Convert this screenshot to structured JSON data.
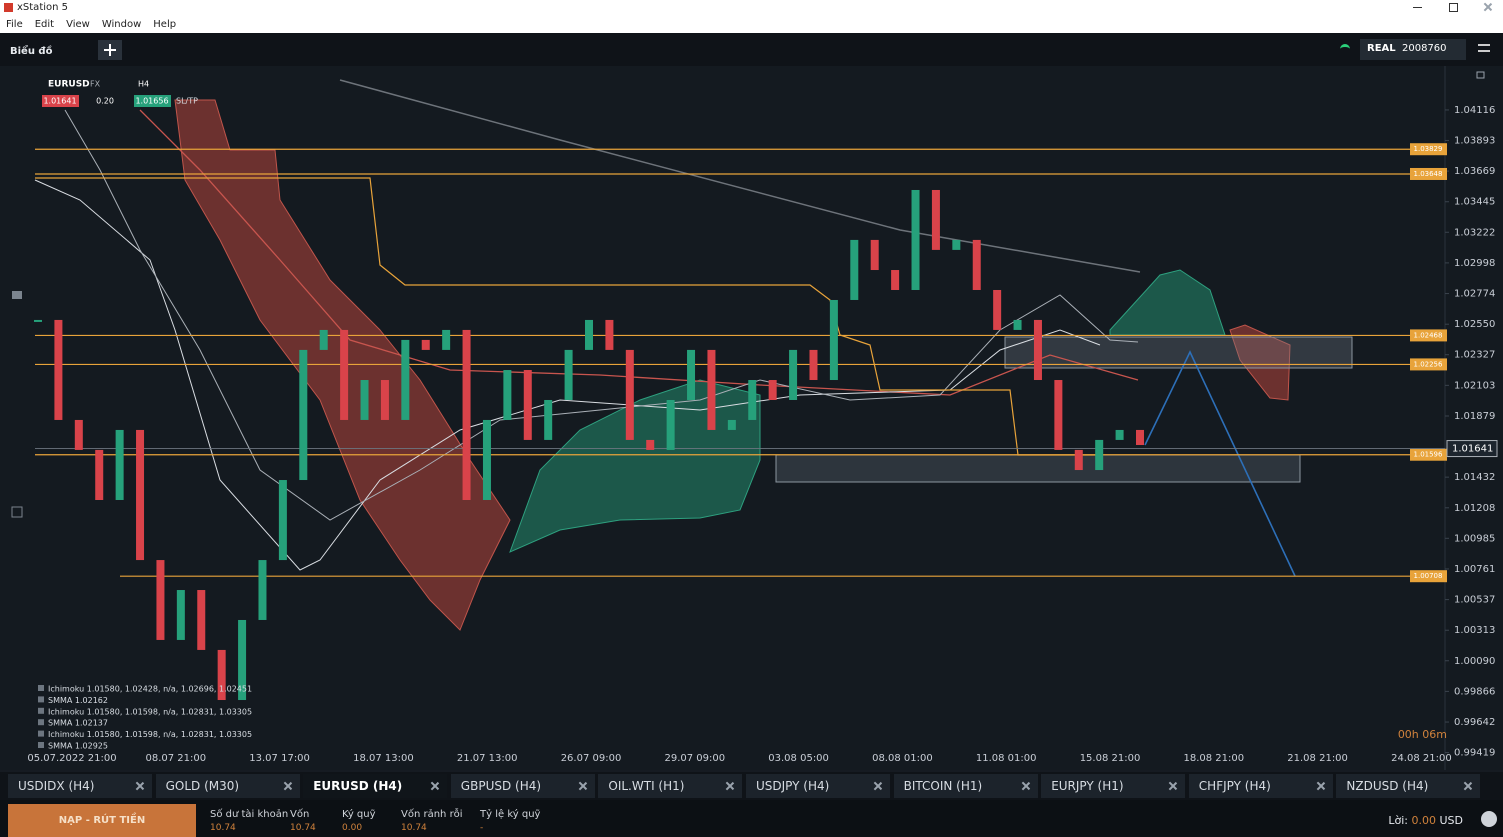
{
  "window": {
    "title": "xStation 5",
    "menu": [
      "File",
      "Edit",
      "View",
      "Window",
      "Help"
    ]
  },
  "toolbar": {
    "tab": "Biểu đồ",
    "account_type": "REAL",
    "account_id": "2008760"
  },
  "instrument": {
    "symbol": "EURUSD",
    "market": "FX",
    "timeframe": "H4",
    "bid": "1.01641",
    "volume": "0.20",
    "ask": "1.01656",
    "sltp": "SL/TP"
  },
  "chart_data": {
    "type": "candlestick",
    "close": [
      1.02581,
      1.0185,
      1.01631,
      1.01265,
      1.01777,
      1.00826,
      1.00242,
      1.00607,
      1.00169,
      0.99803,
      1.00388,
      1.00826,
      1.01411,
      1.02362,
      1.02508,
      1.0185,
      1.02142,
      1.0185,
      1.02435,
      1.02362,
      1.02508,
      1.01265,
      1.0185,
      1.02215,
      1.01704,
      1.01996,
      1.02362,
      1.02581,
      1.02362,
      1.01704,
      1.01631,
      1.01996,
      1.02362,
      1.01777,
      1.0185,
      1.02142,
      1.01996,
      1.02362,
      1.02142,
      1.02727,
      1.03166,
      1.02946,
      1.028,
      1.03531,
      1.03093,
      1.03166,
      1.028,
      1.02508,
      1.02581,
      1.02142,
      1.01631,
      1.01484,
      1.01704,
      1.01777,
      1.01667
    ],
    "colors": {
      "up": "#26a17b",
      "down": "#d9434a",
      "level": "#e8a33a"
    },
    "ylim": [
      0.99328,
      1.04408
    ],
    "yticks": [
      1.04116,
      1.03893,
      1.03669,
      1.03445,
      1.03222,
      1.02998,
      1.02774,
      {
        "value": 1.0255,
        "label": "1.02550"
      },
      1.02327,
      1.02103,
      1.01879,
      1.01432,
      1.01208,
      1.00985,
      1.00761,
      1.00537,
      1.00313,
      {
        "value": 1.0009,
        "label": "1.00090"
      },
      0.99866,
      0.99642,
      0.99419
    ],
    "x_labels": [
      "05.07.2022 21:00",
      "08.07 21:00",
      "13.07 17:00",
      "18.07 13:00",
      "21.07 13:00",
      "26.07 09:00",
      "29.07 09:00",
      "03.08 05:00",
      "08.08 01:00",
      "11.08 01:00",
      "15.08 21:00",
      "18.08 21:00",
      "21.08 21:00",
      "24.08 21:00"
    ],
    "levels": [
      1.03829,
      1.03648,
      1.02468,
      1.02256,
      1.01596,
      1.00708
    ],
    "last_price": 1.01641,
    "indicators": [
      "Ichimoku 1.01580, 1.02428, n/a, 1.02696, 1.02451",
      "SMMA 1.02162",
      "Ichimoku 1.01580, 1.01598, n/a, 1.02831, 1.03305",
      "SMMA 1.02137",
      "Ichimoku 1.01580, 1.01598, n/a, 1.02831, 1.03305",
      "SMMA 1.02925"
    ],
    "countdown": "00h 06m"
  },
  "tabs": [
    "USDIDX (H4)",
    "GOLD (M30)",
    "EURUSD (H4)",
    "GBPUSD (H4)",
    "OIL.WTI (H1)",
    "USDJPY (H4)",
    "BITCOIN (H1)",
    "EURJPY (H1)",
    "CHFJPY (H4)",
    "NZDUSD (H4)"
  ],
  "active_tab": "EURUSD (H4)",
  "footer": {
    "button": "NẠP - RÚT TIỀN",
    "account": [
      {
        "label": "Số dư tài khoản",
        "value": "10.74"
      },
      {
        "label": "Vốn",
        "value": "10.74"
      },
      {
        "label": "Ký quỹ",
        "value": "0.00"
      },
      {
        "label": "Vốn rảnh rỗi",
        "value": "10.74"
      },
      {
        "label": "Tỷ lệ ký quỹ",
        "value": "-"
      }
    ],
    "profit_label": "Lời:",
    "profit_value": "0.00",
    "currency": "USD"
  }
}
